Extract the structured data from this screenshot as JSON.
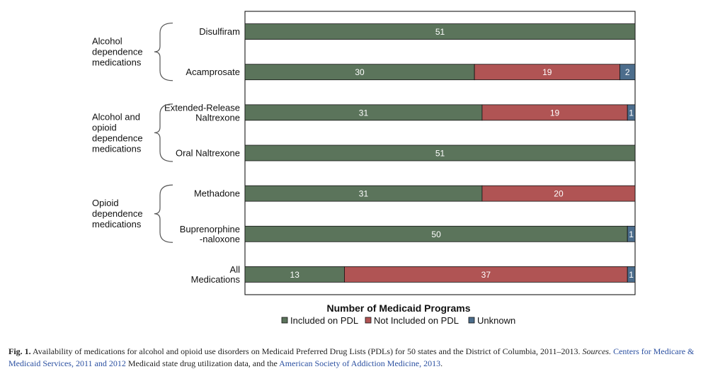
{
  "chart_data": {
    "type": "bar",
    "stacked": true,
    "orientation": "horizontal",
    "title": "Number of Medicaid Programs",
    "xlabel": "Number of Medicaid Programs",
    "ylabel": "",
    "xlim": [
      0,
      51
    ],
    "grid": false,
    "legend_position": "bottom",
    "categories": [
      "Disulfiram",
      "Acamprosate",
      "Extended-Release Naltrexone",
      "Oral Naltrexone",
      "Methadone",
      "Buprenorphine -naloxone",
      "All Medications"
    ],
    "category_lines": [
      [
        "Disulfiram"
      ],
      [
        "Acamprosate"
      ],
      [
        "Extended-Release",
        "Naltrexone"
      ],
      [
        "Oral Naltrexone"
      ],
      [
        "Methadone"
      ],
      [
        "Buprenorphine",
        "-naloxone"
      ],
      [
        "All",
        "Medications"
      ]
    ],
    "series": [
      {
        "name": "Included on PDL",
        "color": "#5b745b",
        "values": [
          51,
          30,
          31,
          51,
          31,
          50,
          13
        ]
      },
      {
        "name": "Not Included on PDL",
        "color": "#b05454",
        "values": [
          0,
          19,
          19,
          0,
          20,
          0,
          37
        ]
      },
      {
        "name": "Unknown",
        "color": "#4c6d8c",
        "values": [
          0,
          2,
          1,
          0,
          0,
          1,
          1
        ]
      }
    ],
    "groups": [
      {
        "lines": [
          "Alcohol",
          "dependence",
          "medications"
        ],
        "members": [
          0,
          1
        ]
      },
      {
        "lines": [
          "Alcohol and",
          "opioid",
          "dependence",
          "medications"
        ],
        "members": [
          2,
          3
        ]
      },
      {
        "lines": [
          "Opioid",
          "dependence",
          "medications"
        ],
        "members": [
          4,
          5
        ]
      }
    ]
  },
  "caption": {
    "label": "Fig. 1.",
    "text": "Availability of medications for alcohol and opioid use disorders on Medicaid Preferred Drug Lists (PDLs) for 50 states and the District of Columbia, 2011–2013.",
    "sources_label": "Sources.",
    "source1": "Centers for Medicare & Medicaid Services, 2011 and 2012",
    "mid": "Medicaid state drug utilization data, and the",
    "source2": "American Society of Addiction Medicine, 2013",
    "end": "."
  }
}
